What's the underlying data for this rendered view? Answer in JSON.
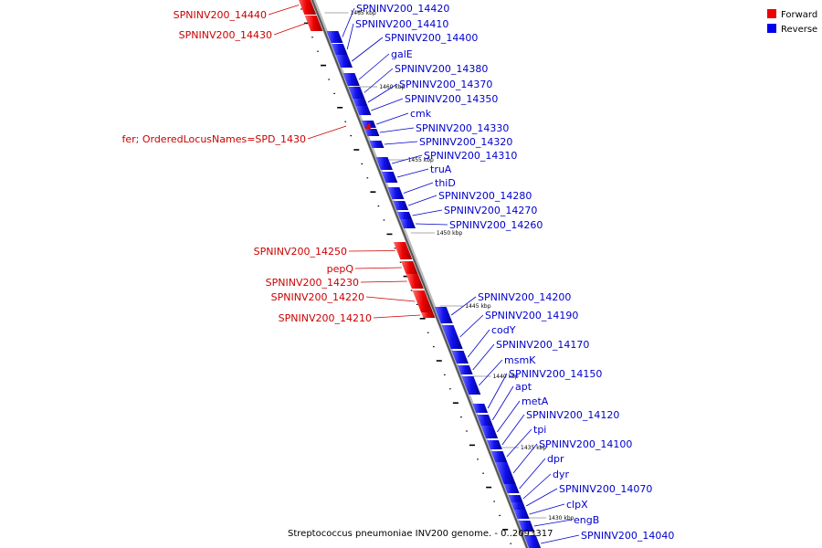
{
  "legend": {
    "forward_label": "Forward",
    "reverse_label": "Reverse",
    "forward_color": "#ee0000",
    "reverse_color": "#0000ee"
  },
  "caption": "Streptococcus pneumoniae INV200 genome. - 0..2093317",
  "ticks": [
    "1465 kbp",
    "1460 kbp",
    "1455 kbp",
    "1450 kbp",
    "1445 kbp",
    "1440 kbp",
    "1435 kbp",
    "1430 kbp"
  ],
  "forward_genes": [
    "SPNINV200_14440",
    "SPNINV200_14430",
    "fer; OrderedLocusNames=SPD_1430",
    "SPNINV200_14250",
    "pepQ",
    "SPNINV200_14230",
    "SPNINV200_14220",
    "SPNINV200_14210"
  ],
  "reverse_genes": [
    "SPNINV200_14420",
    "SPNINV200_14410",
    "SPNINV200_14400",
    "galE",
    "SPNINV200_14380",
    "SPNINV200_14370",
    "SPNINV200_14350",
    "cmk",
    "SPNINV200_14330",
    "SPNINV200_14320",
    "SPNINV200_14310",
    "truA",
    "thiD",
    "SPNINV200_14280",
    "SPNINV200_14270",
    "SPNINV200_14260",
    "SPNINV200_14200",
    "SPNINV200_14190",
    "codY",
    "SPNINV200_14170",
    "msmK",
    "SPNINV200_14150",
    "apt",
    "metA",
    "SPNINV200_14120",
    "tpi",
    "SPNINV200_14100",
    "dpr",
    "dyr",
    "SPNINV200_14070",
    "clpX",
    "engB",
    "SPNINV200_14040"
  ]
}
